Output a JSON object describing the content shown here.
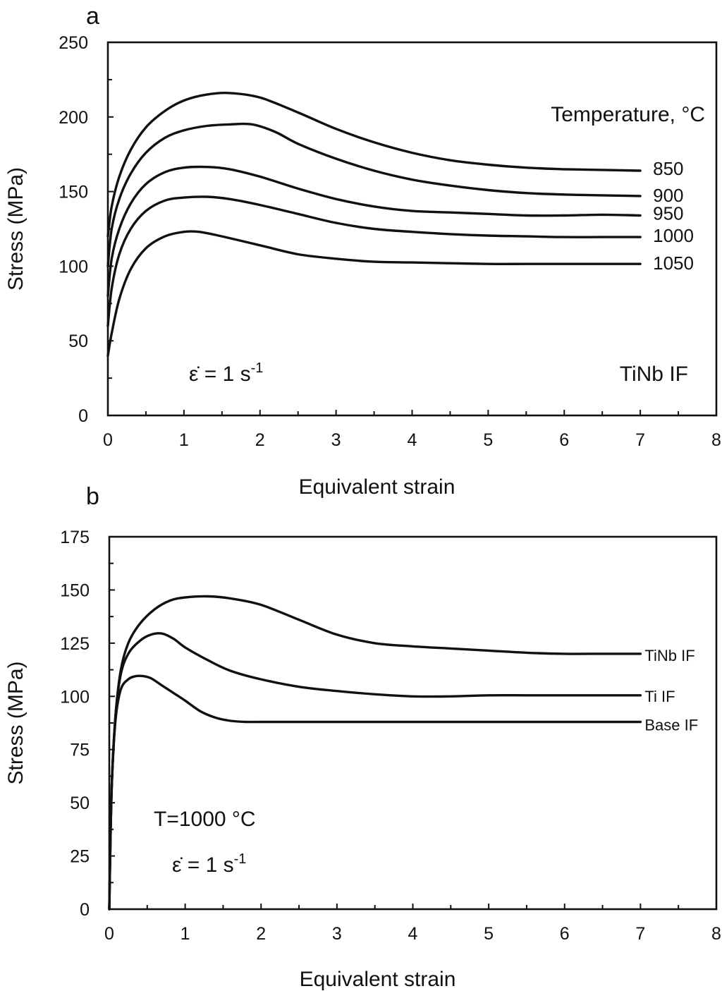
{
  "chart_data": [
    {
      "id": "a",
      "type": "line",
      "panel_label": "a",
      "xlabel": "Equivalent strain",
      "ylabel": "Stress (MPa)",
      "xlim": [
        0,
        8
      ],
      "ylim": [
        0,
        250
      ],
      "xticks": [
        0,
        1,
        2,
        3,
        4,
        5,
        6,
        7,
        8
      ],
      "yticks": [
        0,
        50,
        100,
        150,
        200,
        250
      ],
      "grid": false,
      "legend_title": "Temperature, °C",
      "annotations": {
        "strain_rate_symbol": "ε̇",
        "strain_rate_value": " = 1 s",
        "strain_rate_exp": "-1",
        "material": "TiNb IF"
      },
      "series": [
        {
          "name": "850",
          "x": [
            0,
            0.05,
            0.15,
            0.3,
            0.5,
            0.75,
            1.0,
            1.3,
            1.6,
            2.0,
            2.5,
            3.0,
            3.5,
            4.0,
            4.5,
            5.0,
            5.5,
            6.0,
            6.5,
            7.0
          ],
          "y": [
            120,
            140,
            160,
            178,
            193,
            204,
            211,
            215,
            216,
            213,
            203,
            192,
            183,
            176,
            171,
            168,
            166,
            165,
            164.5,
            164
          ]
        },
        {
          "name": "900",
          "x": [
            0,
            0.05,
            0.15,
            0.3,
            0.5,
            0.75,
            1.0,
            1.3,
            1.6,
            1.9,
            2.2,
            2.5,
            3.0,
            3.5,
            4.0,
            4.5,
            5.0,
            5.5,
            6.0,
            6.5,
            7.0
          ],
          "y": [
            100,
            125,
            145,
            162,
            176,
            186,
            191,
            194,
            195,
            195,
            190,
            182,
            172,
            164,
            158,
            154,
            151,
            149,
            148,
            147.5,
            147
          ]
        },
        {
          "name": "950",
          "x": [
            0,
            0.05,
            0.15,
            0.3,
            0.5,
            0.75,
            1.0,
            1.3,
            1.6,
            2.0,
            2.5,
            3.0,
            3.5,
            4.0,
            4.5,
            5.0,
            5.5,
            6.0,
            6.5,
            7.0
          ],
          "y": [
            80,
            105,
            125,
            142,
            155,
            163,
            166,
            166.5,
            165,
            160,
            152,
            145,
            140,
            137,
            136,
            135,
            134,
            134,
            134.5,
            134
          ]
        },
        {
          "name": "1000",
          "x": [
            0,
            0.05,
            0.15,
            0.3,
            0.5,
            0.75,
            1.0,
            1.3,
            1.6,
            2.0,
            2.5,
            3.0,
            3.5,
            4.0,
            4.5,
            5.0,
            5.5,
            6.0,
            6.5,
            7.0
          ],
          "y": [
            60,
            85,
            108,
            125,
            137,
            144,
            146,
            146.5,
            145,
            141,
            135,
            129,
            125,
            123,
            121.5,
            120.5,
            120,
            119.5,
            119.5,
            119.5
          ]
        },
        {
          "name": "1050",
          "x": [
            0,
            0.05,
            0.15,
            0.3,
            0.5,
            0.75,
            1.0,
            1.2,
            1.5,
            2.0,
            2.5,
            3.0,
            3.5,
            4.0,
            4.5,
            5.0,
            5.5,
            6.0,
            6.5,
            7.0
          ],
          "y": [
            40,
            55,
            78,
            98,
            112,
            120,
            123,
            123,
            120,
            114,
            108,
            105,
            103,
            102.5,
            102,
            101.5,
            101.5,
            101.5,
            101.5,
            101.5
          ]
        }
      ]
    },
    {
      "id": "b",
      "type": "line",
      "panel_label": "b",
      "xlabel": "Equivalent strain",
      "ylabel": "Stress (MPa)",
      "xlim": [
        0,
        8
      ],
      "ylim": [
        0,
        175
      ],
      "xticks": [
        0,
        1,
        2,
        3,
        4,
        5,
        6,
        7,
        8
      ],
      "yticks": [
        0,
        25,
        50,
        75,
        100,
        125,
        150,
        175
      ],
      "grid": false,
      "annotations": {
        "temperature": "T=1000 °C",
        "strain_rate_symbol": "ε̇",
        "strain_rate_value": " = 1 s",
        "strain_rate_exp": "-1"
      },
      "series": [
        {
          "name": "TiNb IF",
          "x": [
            0,
            0.03,
            0.08,
            0.15,
            0.25,
            0.4,
            0.6,
            0.8,
            1.0,
            1.3,
            1.6,
            2.0,
            2.5,
            3.0,
            3.5,
            4.0,
            4.5,
            5.0,
            5.5,
            6.0,
            6.5,
            7.0
          ],
          "y": [
            0,
            55,
            90,
            112,
            125,
            134,
            141,
            145,
            146.5,
            147,
            146,
            143,
            136,
            129,
            125,
            123.5,
            122.5,
            121.5,
            120.5,
            120,
            120,
            120
          ]
        },
        {
          "name": "Ti IF",
          "x": [
            0,
            0.03,
            0.08,
            0.15,
            0.25,
            0.4,
            0.55,
            0.7,
            0.85,
            1.0,
            1.3,
            1.6,
            2.0,
            2.5,
            3.0,
            3.5,
            4.0,
            4.5,
            5.0,
            5.5,
            6.0,
            6.5,
            7.0
          ],
          "y": [
            0,
            55,
            90,
            110,
            120,
            126,
            129,
            129.5,
            127,
            123,
            117,
            112,
            108,
            104.5,
            102.5,
            101,
            100,
            100,
            100.5,
            100.5,
            100.5,
            100.5,
            100.5
          ]
        },
        {
          "name": "Base IF",
          "x": [
            0,
            0.03,
            0.08,
            0.15,
            0.25,
            0.35,
            0.45,
            0.55,
            0.7,
            0.85,
            1.0,
            1.2,
            1.4,
            1.6,
            1.8,
            2.0,
            3.0,
            4.0,
            5.0,
            6.0,
            7.0
          ],
          "y": [
            0,
            55,
            88,
            103,
            108,
            109.5,
            109.5,
            108.5,
            105,
            101.5,
            98,
            93,
            90,
            88.5,
            88,
            88,
            88,
            88,
            88,
            88,
            88
          ]
        }
      ]
    }
  ]
}
